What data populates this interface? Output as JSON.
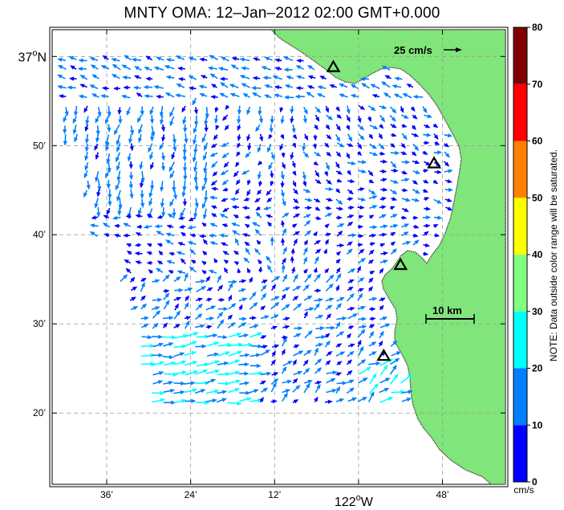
{
  "title": "MNTY OMA: 12–Jan–2012 02:00 GMT+0.000",
  "axes": {
    "lat_ticks": [
      {
        "value": 37.0,
        "label": "37",
        "suffix": "N",
        "major": true
      },
      {
        "value": 36.8333,
        "label": "50’",
        "major": false
      },
      {
        "value": 36.6667,
        "label": "40’",
        "major": false
      },
      {
        "value": 36.5,
        "label": "30’",
        "major": false
      },
      {
        "value": 36.3333,
        "label": "20’",
        "major": false
      }
    ],
    "lon_ticks": [
      {
        "value": -122.6,
        "label": "36’",
        "major": false
      },
      {
        "value": -122.4,
        "label": "24’",
        "major": false
      },
      {
        "value": -122.2,
        "label": "12’",
        "major": false
      },
      {
        "value": -122.0,
        "label": "122",
        "suffix": "W",
        "major": true
      },
      {
        "value": -121.8,
        "label": "48’",
        "major": false
      }
    ],
    "lon_range": [
      -122.73,
      -121.65
    ],
    "lat_range": [
      36.2,
      37.05
    ],
    "grid": true,
    "degree_symbol": "o"
  },
  "scale_arrow": {
    "label": "25 cm/s",
    "speed": 25
  },
  "scale_bar": {
    "label": "10 km",
    "km": 10
  },
  "stations": [
    {
      "lon": -122.06,
      "lat": 36.98
    },
    {
      "lon": -121.82,
      "lat": 36.8
    },
    {
      "lon": -121.9,
      "lat": 36.61
    },
    {
      "lon": -121.94,
      "lat": 36.44
    }
  ],
  "colorbar": {
    "ticks": [
      "0",
      "10",
      "20",
      "30",
      "40",
      "50",
      "60",
      "70",
      "80"
    ],
    "unit": "cm/s",
    "colors": [
      "#0000ff",
      "#0080ff",
      "#00ffff",
      "#80ff80",
      "#ffff00",
      "#ff8000",
      "#ff0000",
      "#800000"
    ],
    "note": "NOTE: Data outside color range will be saturated."
  },
  "colors": {
    "land": "#80e57a",
    "coast": "#333333",
    "grid": "#9a9a9a"
  }
}
